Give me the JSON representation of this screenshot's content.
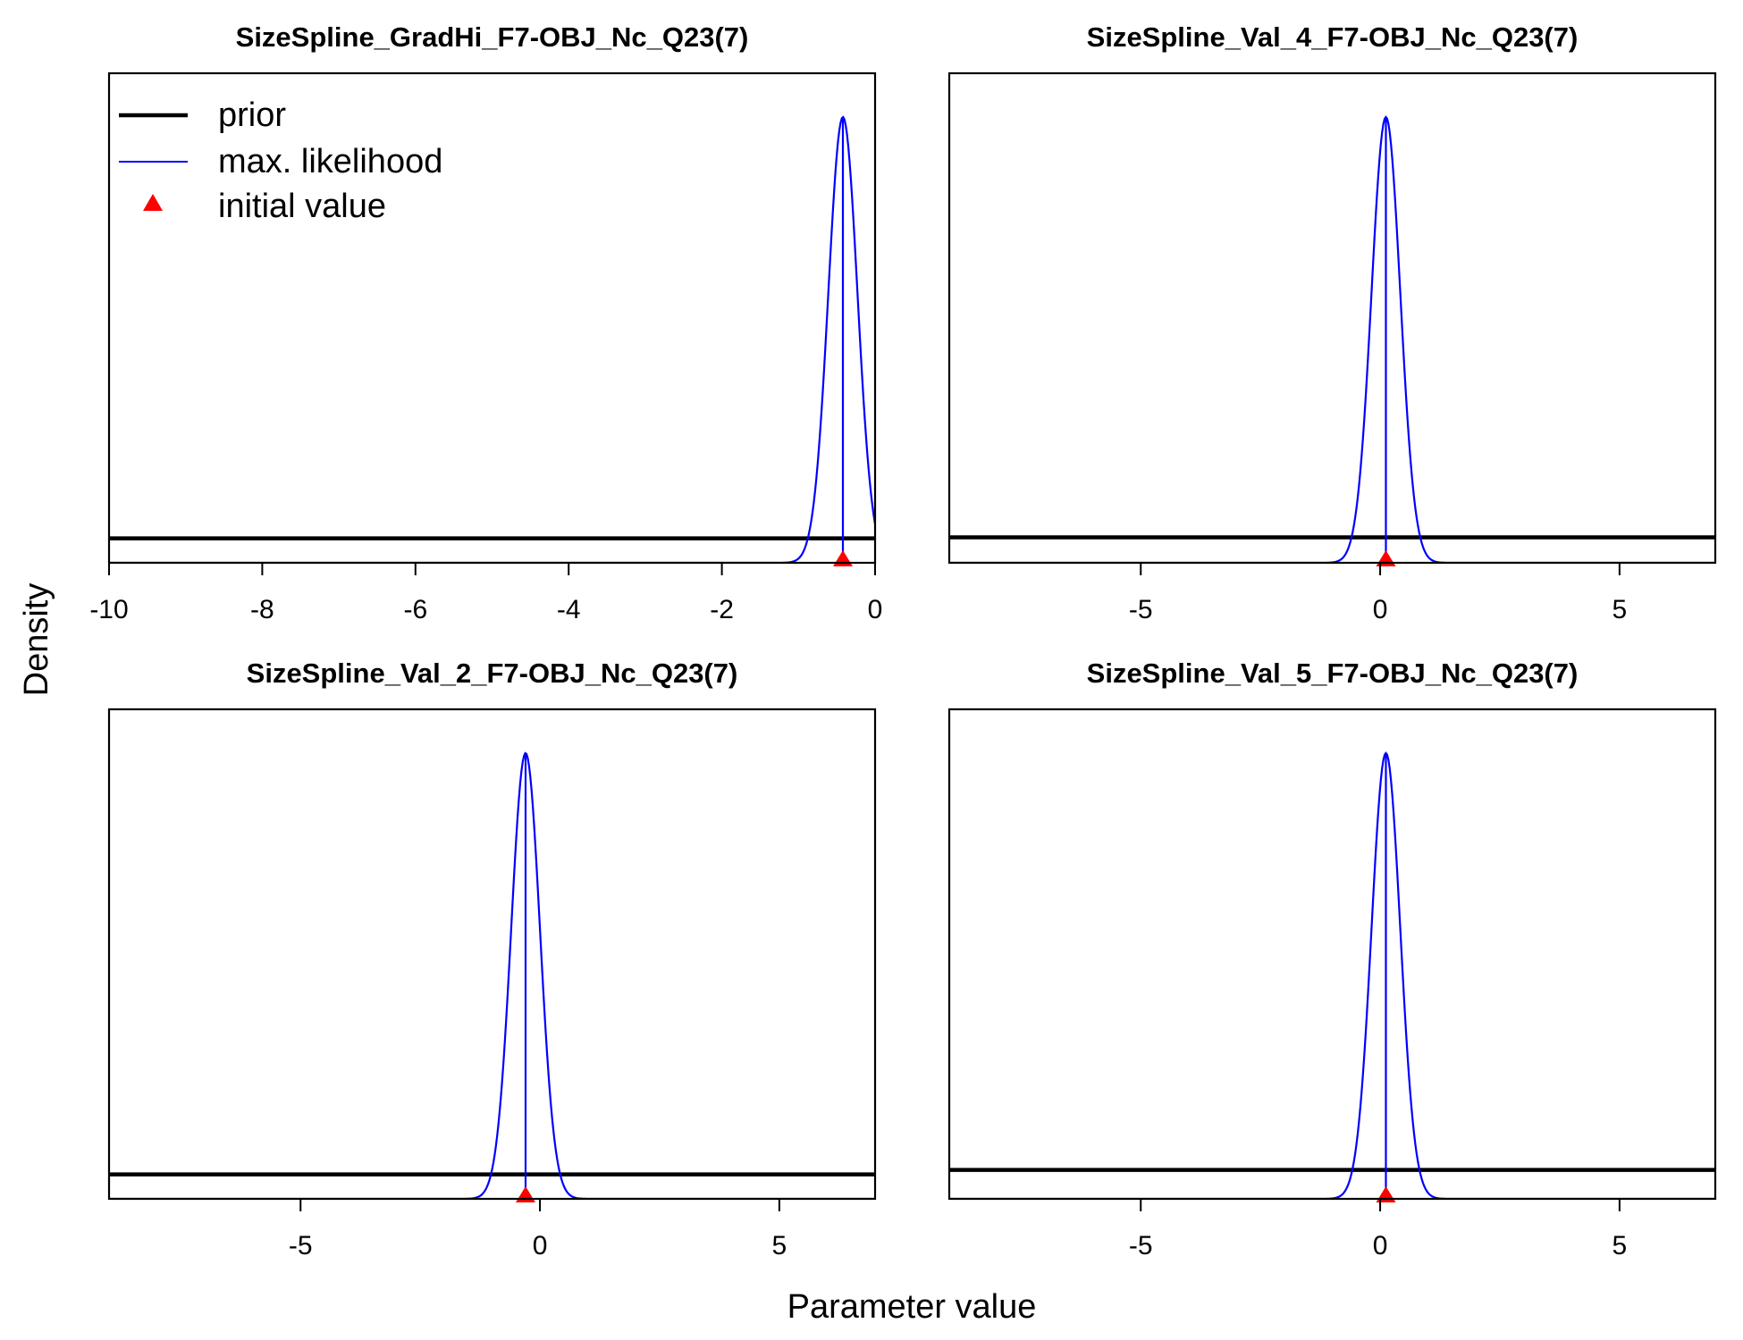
{
  "figure": {
    "xlabel": "Parameter value",
    "ylabel": "Density"
  },
  "legend": {
    "placement": "top-left of first panel",
    "entries": [
      {
        "label": "prior",
        "kind": "thick-line",
        "color": "#000000"
      },
      {
        "label": "max. likelihood",
        "kind": "thin-line",
        "color": "#0000ff"
      },
      {
        "label": "initial value",
        "kind": "triangle",
        "color": "#ff0000"
      }
    ]
  },
  "colors": {
    "prior": "#000000",
    "mle": "#0000ff",
    "initial": "#ff0000"
  },
  "chart_data": [
    {
      "type": "line",
      "title": "SizeSpline_GradHi_F7-OBJ_Nc_Q23(7)",
      "xlim": [
        -10,
        0
      ],
      "xticks": [
        -10,
        -8,
        -6,
        -4,
        -2,
        0
      ],
      "prior_level_fraction": 0.05,
      "mle": {
        "mean": -0.42,
        "sd": 0.19
      },
      "initial_value": -0.42
    },
    {
      "type": "line",
      "title": "SizeSpline_Val_4_F7-OBJ_Nc_Q23(7)",
      "xlim": [
        -9,
        7
      ],
      "xticks": [
        -5,
        0,
        5
      ],
      "prior_level_fraction": 0.052,
      "mle": {
        "mean": 0.12,
        "sd": 0.3
      },
      "initial_value": 0.12
    },
    {
      "type": "line",
      "title": "SizeSpline_Val_2_F7-OBJ_Nc_Q23(7)",
      "xlim": [
        -9,
        7
      ],
      "xticks": [
        -5,
        0,
        5
      ],
      "prior_level_fraction": 0.05,
      "mle": {
        "mean": -0.3,
        "sd": 0.3
      },
      "initial_value": -0.3
    },
    {
      "type": "line",
      "title": "SizeSpline_Val_5_F7-OBJ_Nc_Q23(7)",
      "xlim": [
        -9,
        7
      ],
      "xticks": [
        -5,
        0,
        5
      ],
      "prior_level_fraction": 0.059,
      "mle": {
        "mean": 0.12,
        "sd": 0.3
      },
      "initial_value": 0.12
    }
  ]
}
